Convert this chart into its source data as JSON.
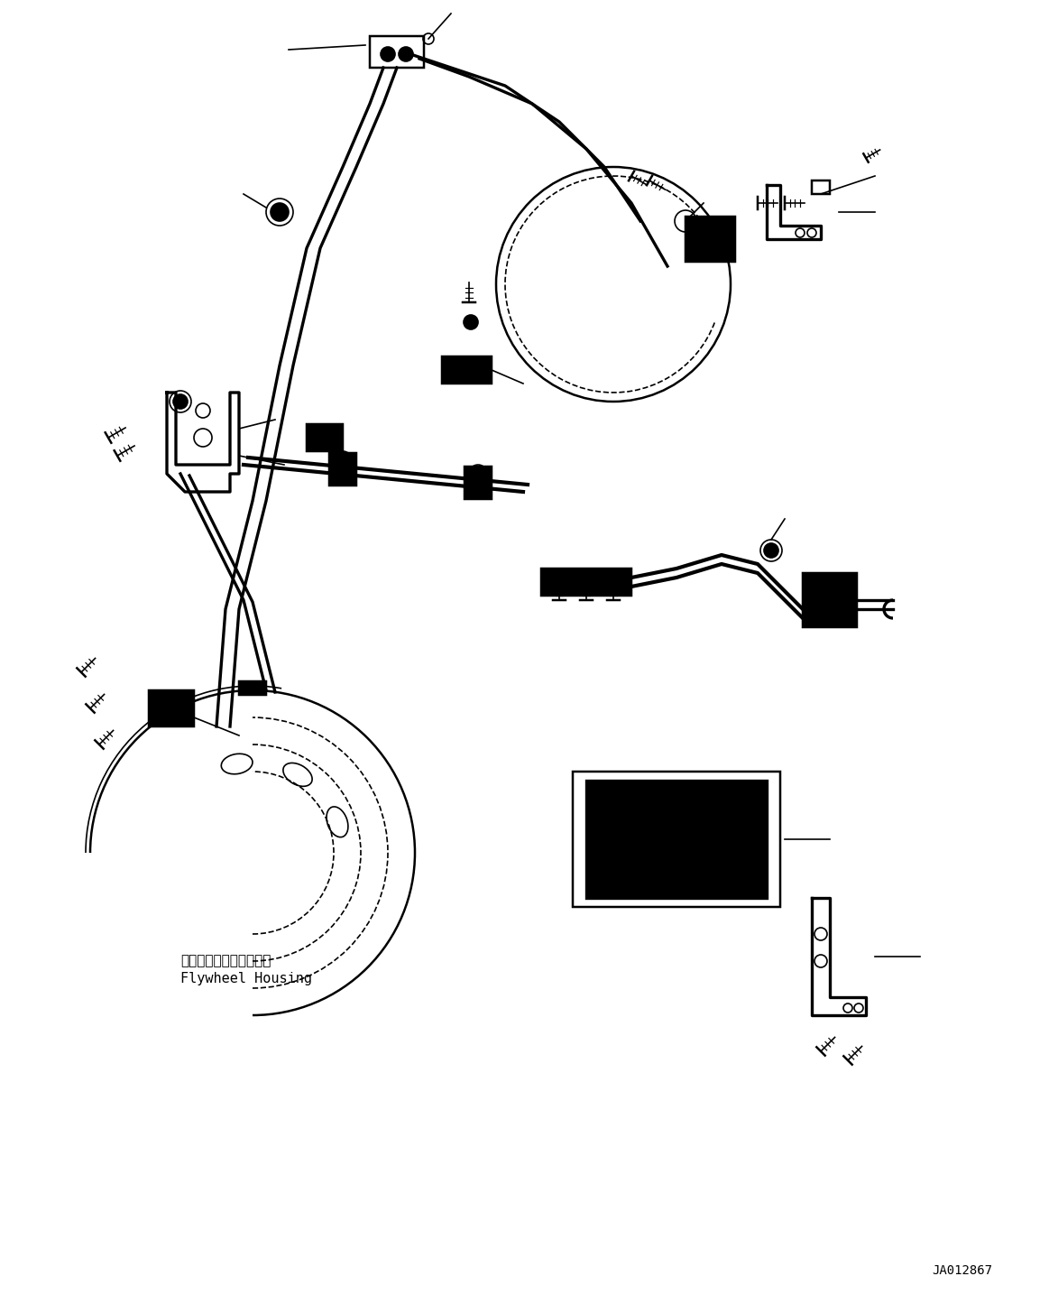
{
  "background_color": "#ffffff",
  "line_color": "#000000",
  "line_width": 1.2,
  "title_text": "",
  "label_flywheel_jp": "フライホイルハウジング",
  "label_flywheel_en": "Flywheel Housing",
  "label_id": "JA012867",
  "figsize": [
    11.63,
    14.45
  ],
  "dpi": 100
}
